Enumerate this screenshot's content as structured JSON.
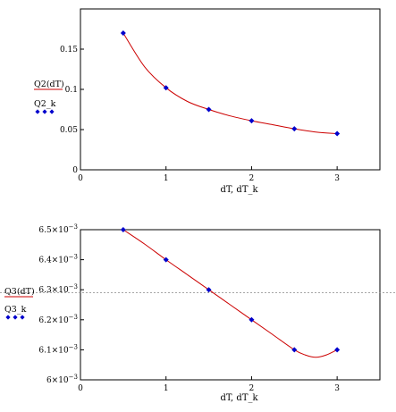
{
  "chart_data": [
    {
      "type": "line",
      "x": [
        0.5,
        1,
        1.5,
        2,
        2.5,
        3
      ],
      "series": [
        {
          "name": "Q2(dT)",
          "style": "line",
          "color": "#cc0000",
          "x": [
            0.5,
            0.75,
            1,
            1.25,
            1.5,
            1.75,
            2,
            2.25,
            2.5,
            2.75,
            3
          ],
          "values": [
            0.17,
            0.128,
            0.102,
            0.085,
            0.075,
            0.067,
            0.061,
            0.056,
            0.051,
            0.047,
            0.045
          ]
        },
        {
          "name": "Q2_k",
          "style": "markers",
          "color": "#0000cc",
          "x": [
            0.5,
            1,
            1.5,
            2,
            2.5,
            3
          ],
          "values": [
            0.17,
            0.102,
            0.075,
            0.061,
            0.051,
            0.045
          ]
        }
      ],
      "xlabel": "dT, dT_k",
      "xlim": [
        0,
        3.5
      ],
      "ylim": [
        0,
        0.2
      ],
      "xticks": [
        {
          "v": 0,
          "label": "0"
        },
        {
          "v": 1,
          "label": "1"
        },
        {
          "v": 2,
          "label": "2"
        },
        {
          "v": 3,
          "label": "3"
        }
      ],
      "yticks": [
        {
          "v": 0,
          "label": "0"
        },
        {
          "v": 0.05,
          "label": "0.05"
        },
        {
          "v": 0.1,
          "label": "0.1"
        },
        {
          "v": 0.15,
          "label": "0.15"
        }
      ],
      "legend_placement": "left",
      "grid": false
    },
    {
      "type": "line",
      "x": [
        0.5,
        1,
        1.5,
        2,
        2.5,
        3
      ],
      "series": [
        {
          "name": "Q3(dT)",
          "style": "line",
          "color": "#cc0000",
          "x": [
            0.5,
            0.75,
            1,
            1.25,
            1.5,
            1.75,
            2,
            2.25,
            2.5,
            2.625,
            2.75,
            2.875,
            3
          ],
          "values": [
            0.0065,
            0.006452,
            0.0064,
            0.00635,
            0.0063,
            0.00625,
            0.0062,
            0.00615,
            0.0061,
            0.006083,
            0.006075,
            0.006083,
            0.0061
          ]
        },
        {
          "name": "Q3_k",
          "style": "markers",
          "color": "#0000cc",
          "x": [
            0.5,
            1,
            1.5,
            2,
            2.5,
            3
          ],
          "values": [
            0.0065,
            0.0064,
            0.0063,
            0.0062,
            0.0061,
            0.0061
          ]
        }
      ],
      "xlabel": "dT, dT_k",
      "xlim": [
        0,
        3.5
      ],
      "ylim": [
        0.006,
        0.0065
      ],
      "xticks": [
        {
          "v": 0,
          "label": "0"
        },
        {
          "v": 1,
          "label": "1"
        },
        {
          "v": 2,
          "label": "2"
        },
        {
          "v": 3,
          "label": "3"
        }
      ],
      "yticks": [
        {
          "v": 0.006,
          "mant": "6",
          "exp": "−3"
        },
        {
          "v": 0.0061,
          "mant": "6.1",
          "exp": "−3"
        },
        {
          "v": 0.0062,
          "mant": "6.2",
          "exp": "−3"
        },
        {
          "v": 0.0063,
          "mant": "6.3",
          "exp": "−3"
        },
        {
          "v": 0.0064,
          "mant": "6.4",
          "exp": "−3"
        },
        {
          "v": 0.0065,
          "mant": "6.5",
          "exp": "−3"
        }
      ],
      "reference_line": {
        "color": "#999999",
        "style": "dashed"
      },
      "legend_placement": "left",
      "grid": false
    }
  ]
}
